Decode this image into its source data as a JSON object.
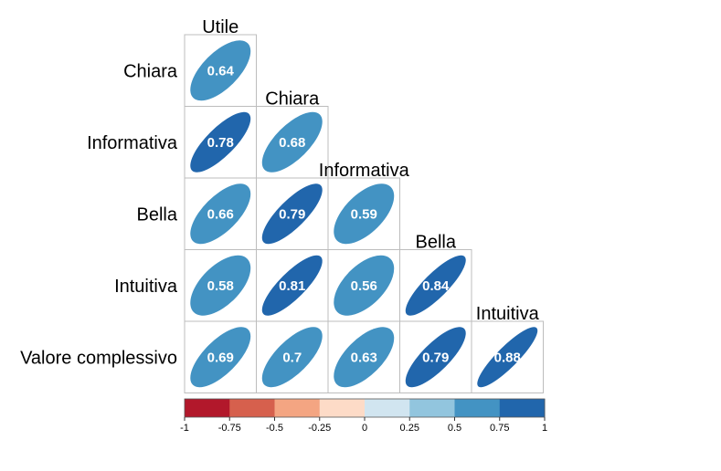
{
  "chart_data": {
    "type": "heatmap",
    "style": "correlation-ellipse-lower-triangle",
    "rows": [
      "Chiara",
      "Informativa",
      "Bella",
      "Intuitiva",
      "Valore complessivo"
    ],
    "columns": [
      "Utile",
      "Chiara",
      "Informativa",
      "Bella",
      "Intuitiva"
    ],
    "values": [
      [
        0.64,
        null,
        null,
        null,
        null
      ],
      [
        0.78,
        0.68,
        null,
        null,
        null
      ],
      [
        0.66,
        0.79,
        0.59,
        null,
        null
      ],
      [
        0.58,
        0.81,
        0.56,
        0.84,
        null
      ],
      [
        0.69,
        0.7,
        0.63,
        0.79,
        0.88
      ]
    ],
    "value_labels": [
      [
        "0.64",
        "",
        "",
        "",
        ""
      ],
      [
        "0.78",
        "0.68",
        "",
        "",
        ""
      ],
      [
        "0.66",
        "0.79",
        "0.59",
        "",
        ""
      ],
      [
        "0.58",
        "0.81",
        "0.56",
        "0.84",
        ""
      ],
      [
        "0.69",
        "0.7",
        "0.63",
        "0.79",
        "0.88"
      ]
    ],
    "colorbar": {
      "range": [
        -1,
        1
      ],
      "ticks": [
        "-1",
        "-0.75",
        "-0.5",
        "-0.25",
        "0",
        "0.25",
        "0.5",
        "0.75",
        "1"
      ],
      "colors": [
        "#B2182B",
        "#D6604D",
        "#F4A582",
        "#FDDBC7",
        "#D1E5F0",
        "#92C5DE",
        "#4393C3",
        "#2166AC"
      ]
    }
  }
}
